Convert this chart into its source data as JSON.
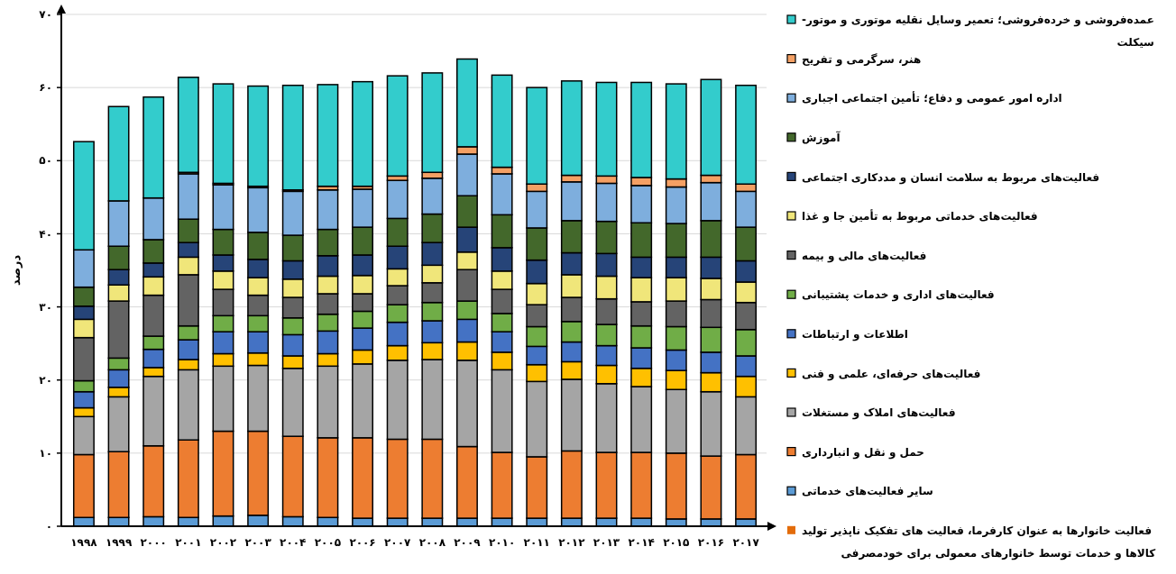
{
  "chart_data": {
    "type": "bar",
    "stacked": true,
    "ylabel": "درصد",
    "categories": [
      "۱۹۹۸",
      "۱۹۹۹",
      "۲۰۰۰",
      "۲۰۰۱",
      "۲۰۰۲",
      "۲۰۰۳",
      "۲۰۰۴",
      "۲۰۰۵",
      "۲۰۰۶",
      "۲۰۰۷",
      "۲۰۰۸",
      "۲۰۰۹",
      "۲۰۱۰",
      "۲۰۱۱",
      "۲۰۱۲",
      "۲۰۱۳",
      "۲۰۱۴",
      "۲۰۱۵",
      "۲۰۱۶",
      "۲۰۱۷"
    ],
    "ylim": [
      0,
      70
    ],
    "yticks": [
      {
        "value": 0,
        "label": "۰"
      },
      {
        "value": 10,
        "label": "۱۰"
      },
      {
        "value": 20,
        "label": "۲۰"
      },
      {
        "value": 30,
        "label": "۳۰"
      },
      {
        "value": 40,
        "label": "۴۰"
      },
      {
        "value": 50,
        "label": "۵۰"
      },
      {
        "value": 60,
        "label": "۶۰"
      },
      {
        "value": 70,
        "label": "۷۰"
      }
    ],
    "grid": "y",
    "legend": "right",
    "series": [
      {
        "name": "فعالیت خانوارها به عنوان کارفرما، فعالیت های تفکیک ناپذیر تولید کالاها و خدمات توسط خانوارهای معمولی برای خودمصرفی",
        "color": "#e36c0a",
        "values": [
          0,
          0,
          0,
          0,
          0,
          0,
          0,
          0,
          0,
          0,
          0,
          0,
          0,
          0,
          0,
          0,
          0,
          0,
          0,
          0
        ]
      },
      {
        "name": "سایر فعالیت‌های خدماتی",
        "color": "#5b9bd5",
        "values": [
          1.2,
          1.2,
          1.3,
          1.2,
          1.4,
          1.5,
          1.3,
          1.2,
          1.1,
          1.1,
          1.1,
          1.1,
          1.1,
          1.1,
          1.1,
          1.1,
          1.1,
          1.0,
          1.0,
          1.0
        ]
      },
      {
        "name": "حمل و نقل و انبارداری",
        "color": "#ed7d31",
        "values": [
          8.6,
          9.0,
          9.7,
          10.6,
          11.6,
          11.5,
          11.0,
          10.9,
          11.0,
          10.8,
          10.8,
          9.8,
          9.0,
          8.4,
          9.2,
          9.0,
          9.0,
          9.0,
          8.6,
          8.8
        ]
      },
      {
        "name": "فعالیت‌های املاک و مستغلات",
        "color": "#a5a5a5",
        "values": [
          5.2,
          7.5,
          9.5,
          9.6,
          8.9,
          9.0,
          9.3,
          9.8,
          10.1,
          10.8,
          10.9,
          11.8,
          11.3,
          10.3,
          9.8,
          9.4,
          9.0,
          8.7,
          8.8,
          7.9
        ]
      },
      {
        "name": "فعالیت‌های حرفه‌ای، علمی و فنی",
        "color": "#ffc000",
        "values": [
          1.2,
          1.3,
          1.2,
          1.4,
          1.7,
          1.7,
          1.7,
          1.7,
          1.9,
          2.0,
          2.3,
          2.5,
          2.4,
          2.3,
          2.4,
          2.5,
          2.5,
          2.6,
          2.6,
          2.8
        ]
      },
      {
        "name": "اطلاعات و ارتباطات",
        "color": "#4472c4",
        "values": [
          2.2,
          2.4,
          2.5,
          2.7,
          3.0,
          2.9,
          2.9,
          3.1,
          3.0,
          3.2,
          3.0,
          3.1,
          2.8,
          2.5,
          2.7,
          2.7,
          2.8,
          2.8,
          2.8,
          2.8
        ]
      },
      {
        "name": "فعالیت‌های اداری و خدمات پشتیبانی",
        "color": "#70ad47",
        "values": [
          1.5,
          1.6,
          1.8,
          1.9,
          2.2,
          2.2,
          2.3,
          2.3,
          2.3,
          2.4,
          2.5,
          2.5,
          2.5,
          2.7,
          2.8,
          2.9,
          3.0,
          3.2,
          3.4,
          3.6
        ]
      },
      {
        "name": "فعالیت‌های مالی و بیمه",
        "color": "#636363",
        "values": [
          5.9,
          7.8,
          5.6,
          7.0,
          3.6,
          2.8,
          2.8,
          2.8,
          2.4,
          2.6,
          2.7,
          4.3,
          3.3,
          3.0,
          3.3,
          3.5,
          3.3,
          3.5,
          3.8,
          3.7
        ]
      },
      {
        "name": "فعالیت‌های خدماتی مربوط به تأمین جا و غذا",
        "color": "#f0e67a",
        "values": [
          2.5,
          2.2,
          2.5,
          2.4,
          2.5,
          2.4,
          2.5,
          2.4,
          2.5,
          2.3,
          2.4,
          2.4,
          2.5,
          2.9,
          3.1,
          3.1,
          3.3,
          3.2,
          2.9,
          2.8
        ]
      },
      {
        "name": "فعالیت‌های مربوط به سلامت انسان و مددکاری اجتماعی",
        "color": "#264478",
        "values": [
          1.8,
          2.1,
          1.9,
          2.0,
          2.2,
          2.5,
          2.5,
          2.8,
          2.8,
          3.1,
          3.1,
          3.4,
          3.2,
          3.2,
          3.0,
          3.1,
          2.8,
          2.8,
          2.9,
          2.9
        ]
      },
      {
        "name": "آموزش",
        "color": "#43682b",
        "values": [
          2.6,
          3.2,
          3.2,
          3.2,
          3.5,
          3.7,
          3.5,
          3.6,
          3.8,
          3.8,
          3.9,
          4.3,
          4.5,
          4.4,
          4.4,
          4.4,
          4.7,
          4.6,
          5.0,
          4.6
        ]
      },
      {
        "name": "اداره امور عمومی و دفاع؛ تأمین اجتماعی اجباری",
        "color": "#7eaedd",
        "values": [
          5.1,
          6.2,
          5.7,
          6.2,
          6.1,
          6.1,
          6.0,
          5.4,
          5.2,
          5.2,
          4.9,
          5.7,
          5.6,
          5.0,
          5.3,
          5.2,
          5.1,
          5.0,
          5.2,
          4.9
        ]
      },
      {
        "name": "هنر، سرگرمی و تفریح",
        "color": "#f4a064",
        "values": [
          0,
          0,
          0,
          0.2,
          0.2,
          0.2,
          0.2,
          0.5,
          0.4,
          0.6,
          0.8,
          1.0,
          0.9,
          1.0,
          0.9,
          1.0,
          1.1,
          1.1,
          1.0,
          1.0
        ]
      },
      {
        "name": "عمده‌فروشی و خرده‌فروشی؛ تعمیر وسایل نقلیه موتوری و موتور-سیکلت",
        "color": "#33cccc",
        "values": [
          14.8,
          12.9,
          13.8,
          13.0,
          13.6,
          13.7,
          14.3,
          13.9,
          14.3,
          13.7,
          13.6,
          12.0,
          12.6,
          13.2,
          12.9,
          12.8,
          13.0,
          13.0,
          13.1,
          13.5
        ]
      }
    ]
  }
}
